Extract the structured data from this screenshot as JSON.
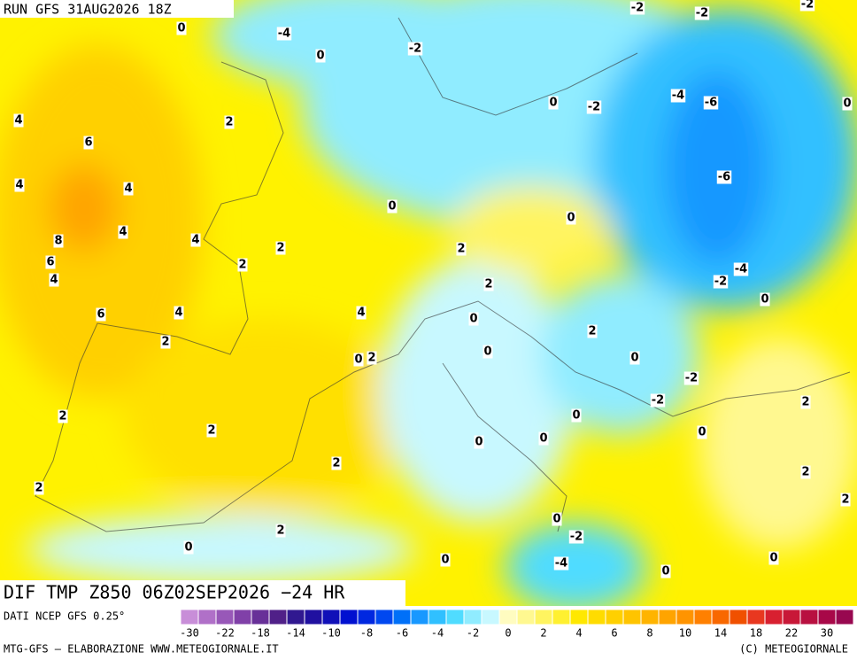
{
  "header": {
    "run": "RUN GFS 31AUG2026 18Z"
  },
  "map": {
    "title": "DIF TMP Z850 06Z02SEP2026 −24 HR",
    "labels": [
      0,
      -4,
      0,
      -2,
      -2,
      -2,
      -2,
      4,
      2,
      6,
      4,
      4,
      0,
      -2,
      -4,
      -6,
      0,
      -6,
      0,
      0,
      8,
      4,
      4,
      2,
      2,
      6,
      4,
      2,
      -4,
      -2,
      2,
      0,
      6,
      4,
      4,
      0,
      2,
      2,
      0,
      2,
      0,
      0,
      -2,
      -2,
      2,
      0,
      2,
      2,
      0,
      0,
      0,
      2,
      2,
      2,
      2,
      0,
      2,
      -2,
      0,
      0,
      0,
      -4,
      0
    ]
  },
  "colorbar": {
    "source": "DATI NCEP GFS 0.25°",
    "colors": [
      "#c88ed8",
      "#b070c8",
      "#9858b8",
      "#8040a8",
      "#683098",
      "#502088",
      "#301890",
      "#2010a0",
      "#1010b8",
      "#0010d0",
      "#0028e0",
      "#0048f0",
      "#0070f8",
      "#1898ff",
      "#30c0ff",
      "#50dcff",
      "#90ecff",
      "#c8f8ff",
      "#fffcc0",
      "#fff890",
      "#fff460",
      "#fff030",
      "#ffe800",
      "#ffdc00",
      "#ffd000",
      "#ffc400",
      "#ffb400",
      "#ffa400",
      "#ff9400",
      "#ff8000",
      "#f86800",
      "#f05000",
      "#e83820",
      "#d82030",
      "#c81838",
      "#b81040",
      "#a80848",
      "#980850"
    ],
    "ticks": [
      -30,
      -22,
      -18,
      -14,
      -10,
      -8,
      -6,
      -4,
      -2,
      0,
      2,
      4,
      6,
      8,
      10,
      14,
      18,
      22,
      30
    ]
  },
  "footer": {
    "left": "MTG-GFS — ELABORAZIONE WWW.METEOGIORNALE.IT",
    "right": "(C) METEOGIORNALE"
  }
}
